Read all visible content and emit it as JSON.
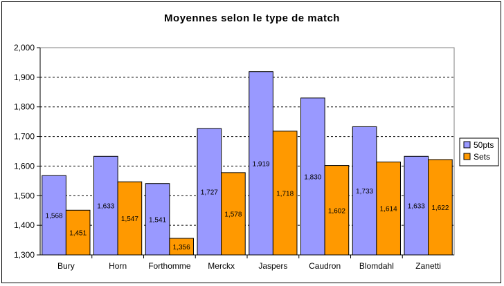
{
  "chart_data": {
    "type": "bar",
    "title": "Moyennes selon le type de match",
    "xlabel": "",
    "ylabel": "",
    "ylim": [
      1.3,
      2.0
    ],
    "yticks": [
      1.3,
      1.4,
      1.5,
      1.6,
      1.7,
      1.8,
      1.9,
      2.0
    ],
    "ytick_labels": [
      "1,300",
      "1,400",
      "1,500",
      "1,600",
      "1,700",
      "1,800",
      "1,900",
      "2,000"
    ],
    "grid": "horizontal dashed",
    "legend_position": "right",
    "categories": [
      "Bury",
      "Horn",
      "Forthomme",
      "Merckx",
      "Jaspers",
      "Caudron",
      "Blomdahl",
      "Zanetti"
    ],
    "series": [
      {
        "name": "50pts",
        "color": "#9999ff",
        "values": [
          1.568,
          1.633,
          1.541,
          1.727,
          1.919,
          1.83,
          1.733,
          1.633
        ],
        "labels": [
          "1,568",
          "1,633",
          "1,541",
          "1,727",
          "1,919",
          "1,830",
          "1,733",
          "1,633"
        ]
      },
      {
        "name": "Sets",
        "color": "#ff9900",
        "values": [
          1.451,
          1.547,
          1.356,
          1.578,
          1.718,
          1.602,
          1.614,
          1.622
        ],
        "labels": [
          "1,451",
          "1,547",
          "1,356",
          "1,578",
          "1,718",
          "1,602",
          "1,614",
          "1,622"
        ]
      }
    ]
  }
}
